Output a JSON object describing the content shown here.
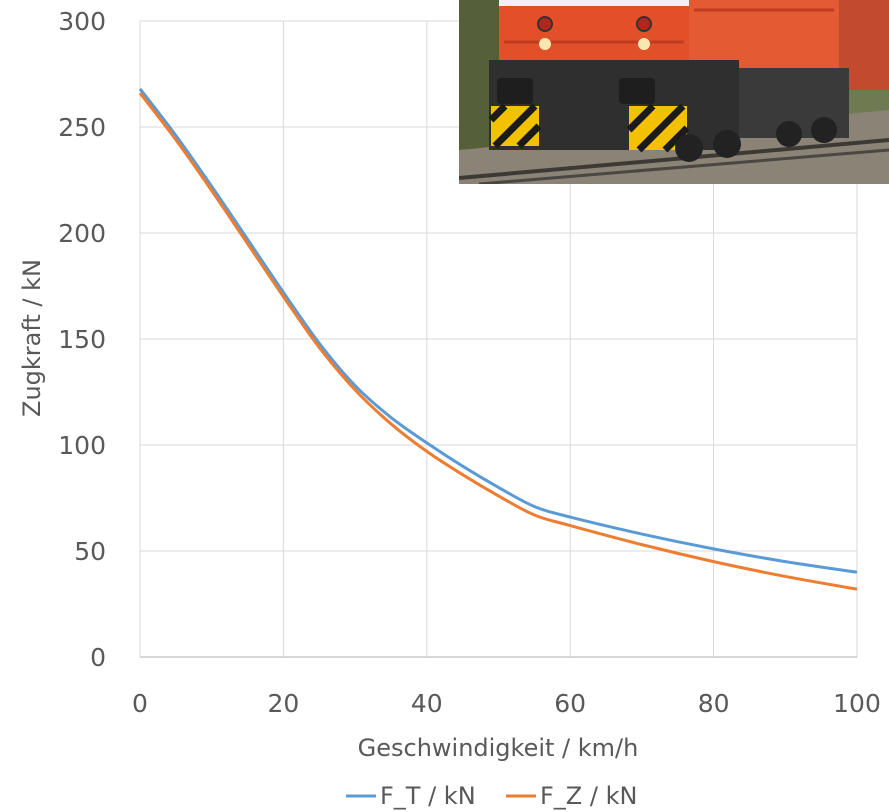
{
  "chart_data": {
    "type": "line",
    "title": "",
    "xlabel": "Geschwindigkeit / km/h",
    "ylabel": "Zugkraft / kN",
    "xlim": [
      0,
      100
    ],
    "ylim": [
      0,
      300
    ],
    "xticks": [
      "0",
      "20",
      "40",
      "60",
      "80",
      "100"
    ],
    "yticks": [
      "0",
      "50",
      "100",
      "150",
      "200",
      "250",
      "300"
    ],
    "grid": true,
    "legend": "bottom",
    "series": [
      {
        "name": "F_T / kN",
        "color": "#5b9bd5",
        "x": [
          0,
          5,
          10,
          15,
          20,
          25,
          30,
          35,
          40,
          45,
          50,
          55,
          60,
          70,
          80,
          90,
          100
        ],
        "y": [
          268,
          246,
          222,
          197,
          172,
          148,
          128,
          113,
          101,
          90,
          80,
          71,
          66,
          58,
          51,
          45,
          40
        ]
      },
      {
        "name": "F_Z / kN",
        "color": "#ed7d31",
        "x": [
          0,
          5,
          10,
          15,
          20,
          25,
          30,
          35,
          40,
          45,
          50,
          55,
          60,
          70,
          80,
          90,
          100
        ],
        "y": [
          266,
          244,
          220,
          195,
          170,
          146,
          126,
          110,
          97,
          86,
          76,
          67,
          62,
          53,
          45,
          38,
          32
        ]
      }
    ]
  },
  "inset_image": {
    "icon": "locomotive-photo",
    "colors": {
      "body": "#e2502a",
      "underframe": "#2f2f2f",
      "hazard": "#f2c200"
    }
  }
}
